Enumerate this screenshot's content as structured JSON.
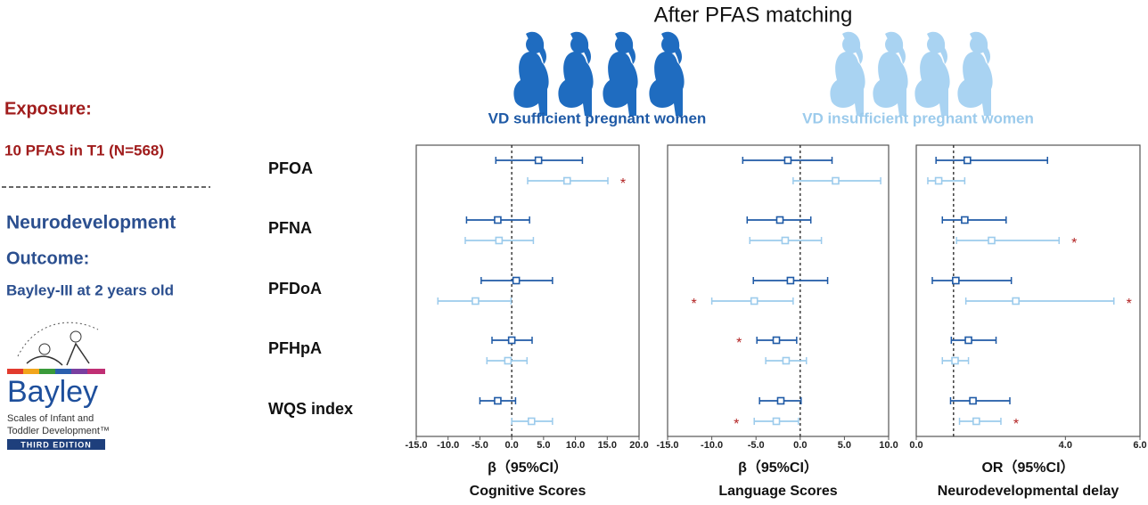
{
  "title": "After PFAS matching",
  "left": {
    "exposure_heading": "Exposure:",
    "exposure": "10 PFAS in T1 (N=568)",
    "outcome_heading_1": "Neurodevelopment",
    "outcome_heading_2": "Outcome:",
    "outcome": "Bayley-III at 2 years old"
  },
  "logo": {
    "name": "Bayley",
    "line1": "Scales of Infant and",
    "line2": "Toddler Development™",
    "edition": "THIRD EDITION"
  },
  "chart_data": [
    {
      "type": "forest",
      "xlabel": "β（95%CI）",
      "subtitle": "Cognitive Scores",
      "categories": [
        "PFOA",
        "PFNA",
        "PFDoA",
        "PFHpA",
        "WQS index"
      ],
      "xlim": [
        -15,
        20
      ],
      "xticks": [
        {
          "value": -15,
          "label": "-15.0"
        },
        {
          "value": -10,
          "label": "-10.0"
        },
        {
          "value": -5,
          "label": "-5.0"
        },
        {
          "value": 0,
          "label": "0.0"
        },
        {
          "value": 5,
          "label": "5.0"
        },
        {
          "value": 10,
          "label": "10.0"
        },
        {
          "value": 15,
          "label": "15.0"
        },
        {
          "value": 20,
          "label": "20.0"
        }
      ],
      "reference": 0,
      "series": [
        {
          "name": "VD sufficient pregnant women",
          "color": "#1f5aa6",
          "values": [
            4.2,
            -2.2,
            0.7,
            0.0,
            -2.2
          ],
          "lower": [
            -2.5,
            -7.1,
            -4.8,
            -3.1,
            -5.0
          ],
          "upper": [
            11.1,
            2.8,
            6.4,
            3.2,
            0.6
          ],
          "significance": [
            null,
            null,
            null,
            null,
            null
          ]
        },
        {
          "name": "VD insufficient pregnant women",
          "color": "#9ccbec",
          "values": [
            8.7,
            -2.0,
            -5.7,
            -0.6,
            3.1
          ],
          "lower": [
            2.5,
            -7.3,
            -11.6,
            -3.9,
            0.0
          ],
          "upper": [
            15.1,
            3.4,
            -0.1,
            2.4,
            6.4
          ],
          "significance": [
            "*",
            null,
            null,
            null,
            null
          ]
        }
      ]
    },
    {
      "type": "forest",
      "xlabel": "β（95%CI）",
      "subtitle": "Language Scores",
      "xlim": [
        -15,
        10
      ],
      "xticks": [
        {
          "value": -15,
          "label": "-15.0"
        },
        {
          "value": -10,
          "label": "-10.0"
        },
        {
          "value": -5,
          "label": "-5.0"
        },
        {
          "value": 0,
          "label": "0.0"
        },
        {
          "value": 5,
          "label": "5.0"
        },
        {
          "value": 10,
          "label": "10.0"
        }
      ],
      "reference": 0,
      "series": [
        {
          "name": "VD sufficient pregnant women",
          "color": "#1f5aa6",
          "values": [
            -1.4,
            -2.3,
            -1.1,
            -2.7,
            -2.2
          ],
          "lower": [
            -6.5,
            -6.0,
            -5.3,
            -4.9,
            -4.6
          ],
          "upper": [
            3.6,
            1.2,
            3.1,
            -0.4,
            0.1
          ],
          "significance": [
            null,
            null,
            null,
            "*",
            null
          ]
        },
        {
          "name": "VD insufficient pregnant women",
          "color": "#9ccbec",
          "values": [
            4.0,
            -1.7,
            -5.2,
            -1.6,
            -2.7
          ],
          "lower": [
            -0.8,
            -5.7,
            -10.0,
            -3.9,
            -5.2
          ],
          "upper": [
            9.1,
            2.4,
            -0.8,
            0.7,
            -0.2
          ],
          "significance": [
            null,
            null,
            "*",
            null,
            "*"
          ]
        }
      ]
    },
    {
      "type": "forest",
      "xlabel": "OR（95%CI）",
      "subtitle": "Neurodevelopmental delay",
      "xlim": [
        0,
        6
      ],
      "xticks": [
        {
          "value": 0,
          "label": "0.0"
        },
        {
          "value": 4,
          "label": "4.0"
        },
        {
          "value": 6,
          "label": "6.0"
        }
      ],
      "reference": 1,
      "series": [
        {
          "name": "VD sufficient pregnant women",
          "color": "#1f5aa6",
          "values": [
            1.37,
            1.3,
            1.06,
            1.4,
            1.52
          ],
          "lower": [
            0.53,
            0.7,
            0.43,
            0.94,
            0.92
          ],
          "upper": [
            3.52,
            2.41,
            2.55,
            2.14,
            2.51
          ],
          "significance": [
            null,
            null,
            null,
            null,
            null
          ]
        },
        {
          "name": "VD insufficient pregnant women",
          "color": "#9ccbec",
          "values": [
            0.6,
            2.02,
            2.67,
            1.04,
            1.61
          ],
          "lower": [
            0.31,
            1.08,
            1.33,
            0.7,
            1.16
          ],
          "upper": [
            1.3,
            3.83,
            5.3,
            1.4,
            2.27
          ],
          "significance": [
            null,
            "*",
            "*",
            null,
            "*"
          ]
        }
      ]
    }
  ]
}
